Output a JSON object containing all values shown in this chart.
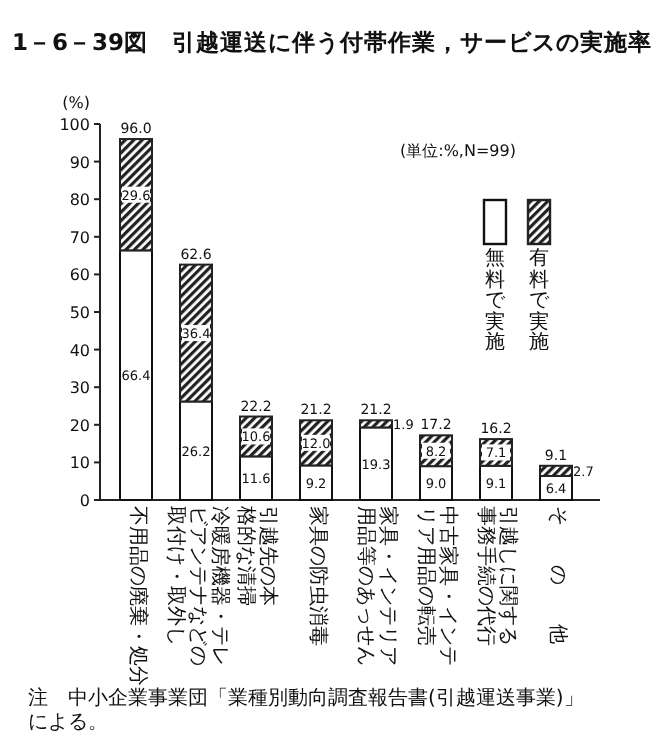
{
  "chart_data": {
    "type": "bar",
    "stacked": true,
    "title": "1－6－39図　引越運送に伴う付帯作業，サービスの実施率",
    "ylabel": "(%)",
    "categories": [
      "不用品の廃棄・処分",
      "冷暖房機器・テレビアンテナなどの取付け・取外し",
      "引越先の本格的な清掃",
      "家具の防虫消毒",
      "家具・インテリア用品等のあっせん",
      "中古家具・インテリア用品の転売",
      "引越しに関する事務手続の代行",
      "その他"
    ],
    "series": [
      {
        "name": "無料で実施",
        "color": "#ffffff",
        "values": [
          66.4,
          26.2,
          11.6,
          9.2,
          19.3,
          9.0,
          9.1,
          6.4
        ],
        "value_labels": [
          "66.4",
          "26.2",
          "11.6",
          "9.2",
          "19.3",
          "9.0",
          "9.1",
          "6.4"
        ]
      },
      {
        "name": "有料で実施",
        "color": "#222222",
        "values": [
          29.6,
          36.4,
          10.6,
          12.0,
          1.9,
          8.2,
          7.1,
          2.7
        ],
        "value_labels": [
          "29.6",
          "36.4",
          "10.6",
          "12.0",
          "1.9",
          "8.2",
          "7.1",
          "2.7"
        ]
      }
    ],
    "totals": [
      "96.0",
      "62.6",
      "22.2",
      "21.2",
      "21.2",
      "17.2",
      "16.2",
      "9.1"
    ],
    "ylim": [
      0,
      100
    ],
    "yticks": [
      0,
      10,
      20,
      30,
      40,
      50,
      60,
      70,
      80,
      90,
      100
    ],
    "legend": "top right",
    "grid": false,
    "annotations": [
      "(単位:%,N=99)",
      "注　中小企業事業団「業種別動向調査報告書(引越運送事業)」による。"
    ]
  }
}
